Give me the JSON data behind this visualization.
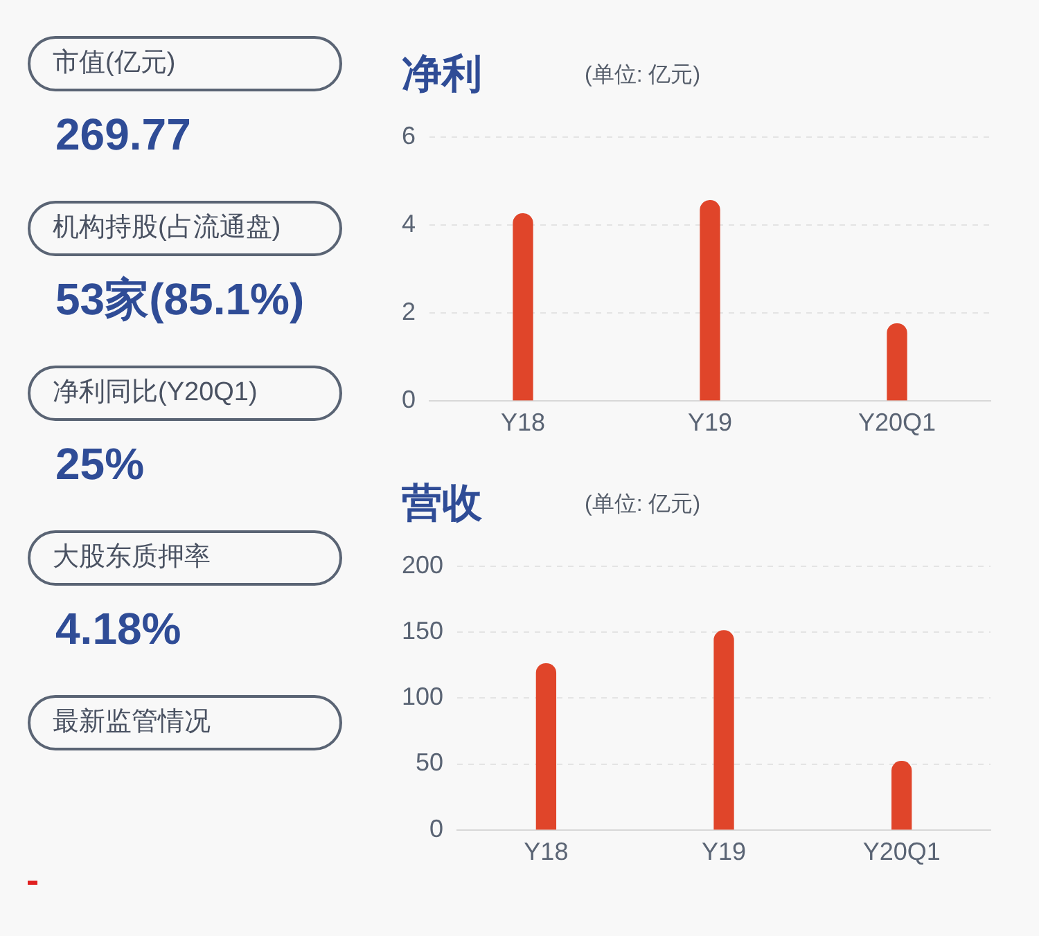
{
  "chart_data": [
    {
      "type": "other",
      "categories": [
        "市值(亿元)",
        "机构持股(占流通盘)",
        "净利同比(Y20Q1)",
        "大股东质押率",
        "最新监管情况"
      ],
      "annotations": [
        "269.77",
        "53家(85.1%)",
        "25%",
        "4.18%"
      ]
    },
    {
      "type": "bar",
      "title": "净利",
      "subtitle": "(单位: 亿元)",
      "categories": [
        "Y18",
        "Y19",
        "Y20Q1"
      ],
      "series": [
        {
          "color": "#e0452a",
          "values": [
            4.25,
            4.55,
            1.75
          ]
        }
      ],
      "ylim": [
        0,
        6
      ],
      "yticks": [
        0,
        2,
        4,
        6
      ],
      "grid": "y",
      "legend": false
    },
    {
      "type": "bar",
      "title": "营收",
      "subtitle": "(单位: 亿元)",
      "categories": [
        "Y18",
        "Y19",
        "Y20Q1"
      ],
      "series": [
        {
          "color": "#e0452a",
          "values": [
            126,
            151,
            52
          ]
        }
      ],
      "ylim": [
        0,
        200
      ],
      "yticks": [
        0,
        50,
        100,
        150,
        200
      ],
      "grid": "y",
      "legend": false
    }
  ]
}
